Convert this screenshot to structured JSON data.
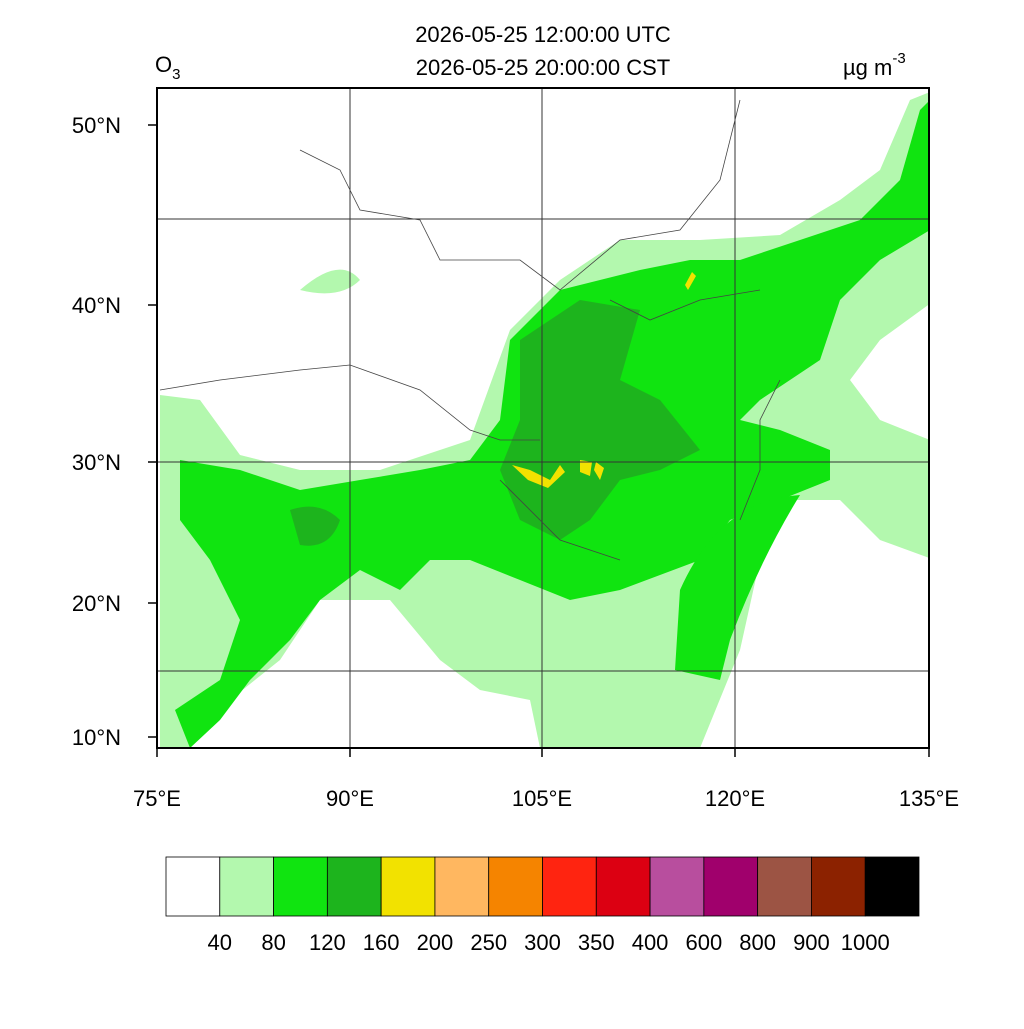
{
  "header": {
    "title_lines": [
      "2026-05-25 12:00:00 UTC",
      "2026-05-25 20:00:00 CST"
    ],
    "variable": {
      "base": "O",
      "subscript": "3"
    },
    "unit": {
      "base": "µg m",
      "superscript": "-3"
    }
  },
  "map": {
    "lat_labels": [
      "50°N",
      "40°N",
      "30°N",
      "20°N",
      "10°N"
    ],
    "lon_labels": [
      "75°E",
      "90°E",
      "105°E",
      "120°E",
      "135°E"
    ]
  },
  "colorbar": {
    "colors": [
      "#ffffff",
      "#b3f8ae",
      "#10e410",
      "#1db41d",
      "#f2e200",
      "#ffb760",
      "#f58400",
      "#ff2410",
      "#dc0012",
      "#b84e9e",
      "#a0006c",
      "#9c5444",
      "#8c2200",
      "#000000"
    ],
    "levels": [
      40,
      80,
      120,
      160,
      200,
      250,
      300,
      350,
      400,
      600,
      800,
      900,
      1000
    ]
  }
}
